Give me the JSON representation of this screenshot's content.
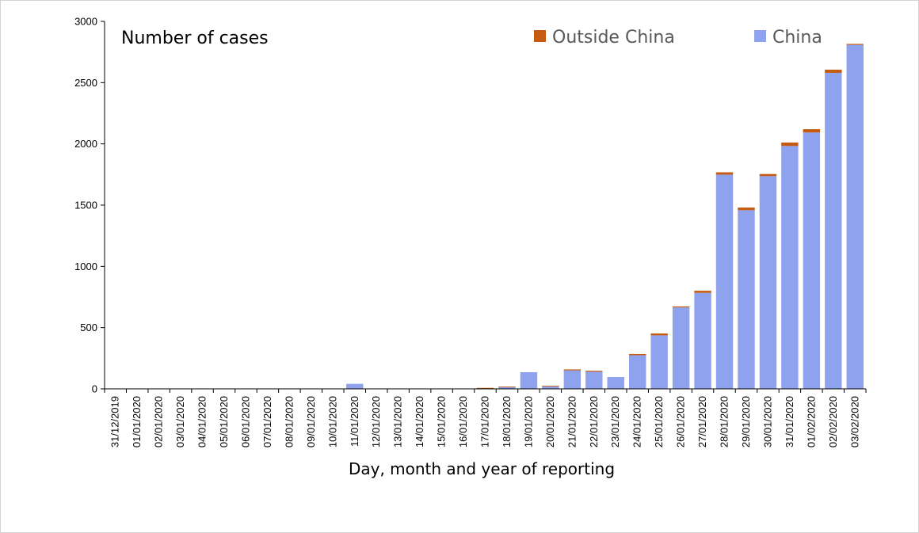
{
  "chart_data": {
    "type": "bar",
    "stacked": true,
    "title": "Number of cases",
    "xlabel": "Day, month and year of reporting",
    "ylabel": "",
    "ylim": [
      0,
      3000
    ],
    "yticks": [
      0,
      500,
      1000,
      1500,
      2000,
      2500,
      3000
    ],
    "legend_position": "top-right",
    "categories": [
      "31/12/2019",
      "01/01/2020",
      "02/01/2020",
      "03/01/2020",
      "04/01/2020",
      "05/01/2020",
      "06/01/2020",
      "07/01/2020",
      "08/01/2020",
      "09/01/2020",
      "10/01/2020",
      "11/01/2020",
      "12/01/2020",
      "13/01/2020",
      "14/01/2020",
      "15/01/2020",
      "16/01/2020",
      "17/01/2020",
      "18/01/2020",
      "19/01/2020",
      "20/01/2020",
      "21/01/2020",
      "22/01/2020",
      "23/01/2020",
      "24/01/2020",
      "25/01/2020",
      "26/01/2020",
      "27/01/2020",
      "28/01/2020",
      "29/01/2020",
      "30/01/2020",
      "31/01/2020",
      "01/02/2020",
      "02/02/2020",
      "03/02/2020"
    ],
    "series": [
      {
        "name": "China",
        "color": "#8fa2ee",
        "values": [
          0,
          0,
          0,
          0,
          0,
          0,
          0,
          0,
          0,
          0,
          0,
          41,
          0,
          0,
          0,
          0,
          0,
          4,
          17,
          136,
          19,
          151,
          140,
          97,
          275,
          437,
          665,
          784,
          1749,
          1459,
          1737,
          1983,
          2093,
          2580,
          2808
        ]
      },
      {
        "name": "Outside China",
        "color": "#c55a11",
        "values": [
          0,
          0,
          0,
          0,
          0,
          0,
          0,
          0,
          0,
          0,
          0,
          0,
          0,
          0,
          0,
          0,
          0,
          4,
          1,
          0,
          6,
          8,
          8,
          0,
          10,
          15,
          8,
          17,
          19,
          21,
          17,
          28,
          27,
          26,
          8
        ]
      }
    ],
    "grid": false
  }
}
